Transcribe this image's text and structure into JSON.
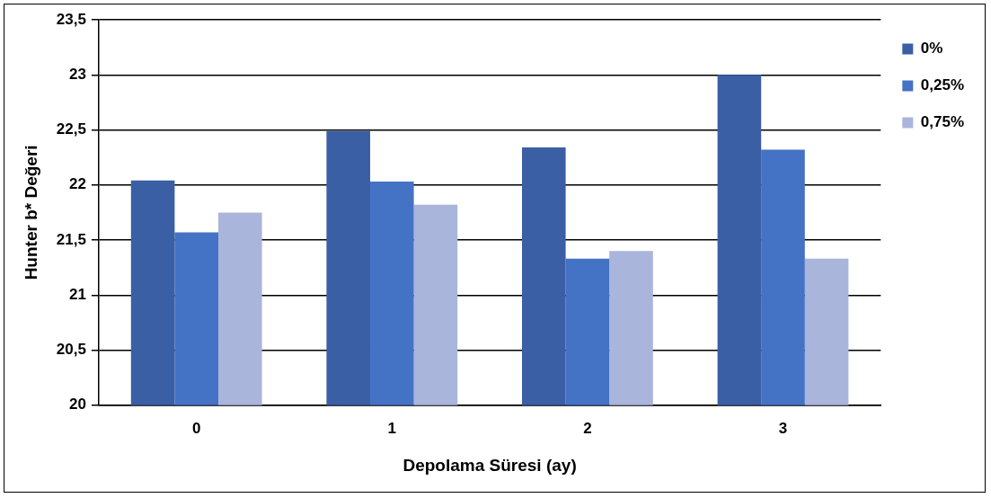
{
  "chart_data": {
    "type": "bar",
    "xlabel": "Depolama Süresi (ay)",
    "ylabel": "Hunter b* Değeri",
    "categories": [
      "0",
      "1",
      "2",
      "3"
    ],
    "series": [
      {
        "name": "0%",
        "color": "#3a5fa5",
        "values": [
          22.04,
          22.49,
          22.34,
          23.0
        ]
      },
      {
        "name": "0,25%",
        "color": "#4472c4",
        "values": [
          21.57,
          22.03,
          21.33,
          22.32
        ]
      },
      {
        "name": "0,75%",
        "color": "#a9b5da",
        "values": [
          21.75,
          21.82,
          21.4,
          21.33
        ]
      }
    ],
    "ylim": [
      20,
      23.5
    ],
    "yticks": [
      20,
      {
        "value": 20.5,
        "label": "20,5"
      },
      21,
      {
        "value": 21.5,
        "label": "21,5"
      },
      22,
      {
        "value": 22.5,
        "label": "22,5"
      },
      23,
      {
        "value": 23.5,
        "label": "23,5"
      }
    ],
    "grid": "y",
    "legend": "top right"
  }
}
